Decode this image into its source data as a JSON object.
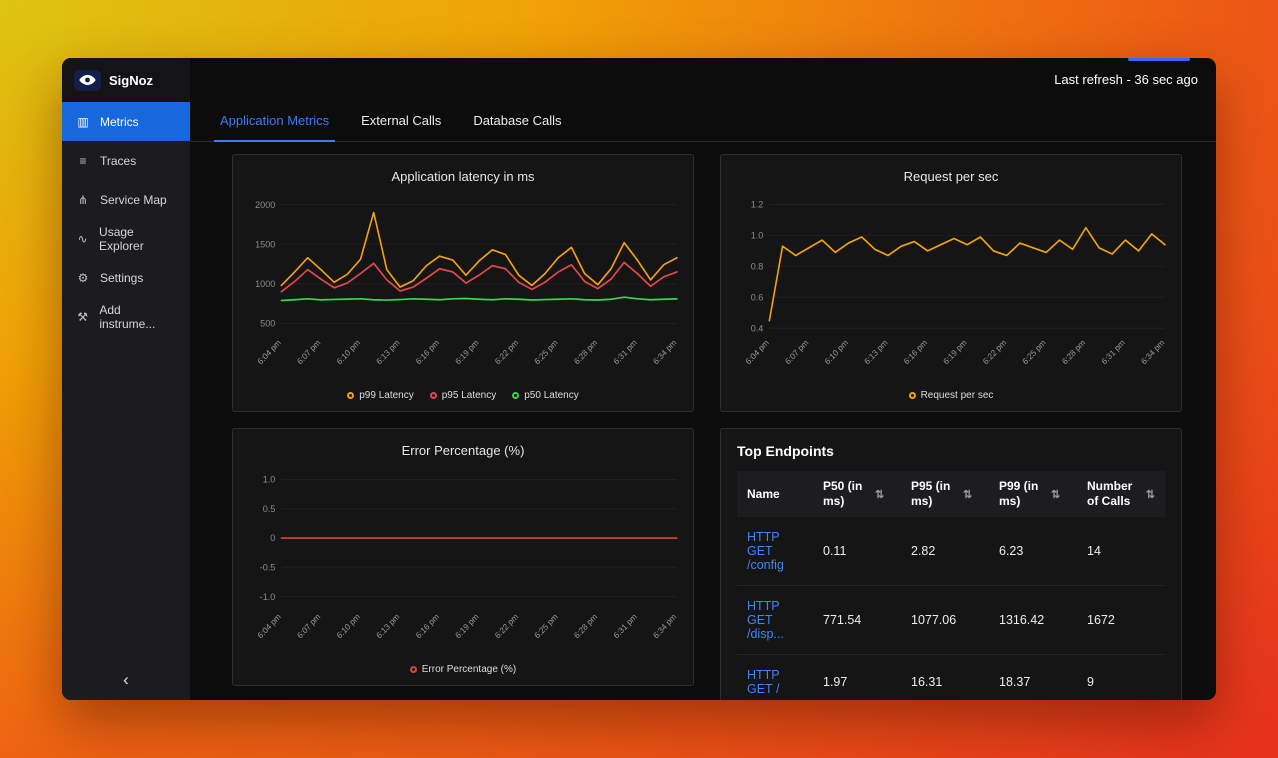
{
  "header": {
    "last_refresh": "Last refresh - 36 sec ago"
  },
  "sidebar": {
    "logo_text": "SigNoz",
    "collapse_glyph": "‹",
    "items": [
      {
        "label": "Metrics",
        "icon": "bar-chart-icon",
        "active": true
      },
      {
        "label": "Traces",
        "icon": "traces-icon",
        "active": false
      },
      {
        "label": "Service Map",
        "icon": "service-map-icon",
        "active": false
      },
      {
        "label": "Usage Explorer",
        "icon": "usage-explorer-icon",
        "active": false
      },
      {
        "label": "Settings",
        "icon": "settings-icon",
        "active": false
      },
      {
        "label": "Add instrume...",
        "icon": "add-instrumentation-icon",
        "active": false
      }
    ]
  },
  "icon_glyphs": {
    "bar-chart-icon": "▥",
    "traces-icon": "≡",
    "service-map-icon": "⋔",
    "usage-explorer-icon": "∿",
    "settings-icon": "⚙",
    "add-instrumentation-icon": "⚒",
    "sort-icon": "⇅"
  },
  "tabs": [
    {
      "label": "Application Metrics",
      "active": true
    },
    {
      "label": "External Calls",
      "active": false
    },
    {
      "label": "Database Calls",
      "active": false
    }
  ],
  "colors": {
    "accent_blue": "#3d7bf5",
    "active_menu_blue": "#1668dc",
    "link_blue": "#4286f5",
    "p99_yellow": "#f2a20c",
    "p95_red": "#e5484d",
    "p50_green": "#3bd549",
    "error_red": "#e0462f"
  },
  "chart_data": [
    {
      "type": "line",
      "title": "Application latency in ms",
      "x_labels": [
        "6:04 pm",
        "6:07 pm",
        "6:10 pm",
        "6:13 pm",
        "6:16 pm",
        "6:19 pm",
        "6:22 pm",
        "6:25 pm",
        "6:28 pm",
        "6:31 pm",
        "6:34 pm"
      ],
      "ylim": [
        400,
        2100
      ],
      "yticks": [
        500,
        1000,
        1500,
        2000
      ],
      "ytick_labels": [
        "500",
        "1000",
        "1500",
        "2000"
      ],
      "series": [
        {
          "name": "p99 Latency",
          "color": "#f2a20c",
          "values": [
            980,
            1150,
            1330,
            1180,
            1020,
            1120,
            1310,
            1900,
            1180,
            960,
            1040,
            1230,
            1350,
            1300,
            1110,
            1290,
            1430,
            1370,
            1110,
            980,
            1130,
            1330,
            1460,
            1130,
            990,
            1190,
            1520,
            1300,
            1050,
            1240,
            1330
          ]
        },
        {
          "name": "p95 Latency",
          "color": "#e5484d",
          "values": [
            900,
            1030,
            1180,
            1060,
            950,
            1010,
            1130,
            1260,
            1050,
            910,
            960,
            1070,
            1190,
            1150,
            1010,
            1110,
            1230,
            1190,
            1020,
            930,
            1020,
            1150,
            1240,
            1030,
            940,
            1060,
            1270,
            1130,
            970,
            1090,
            1150
          ]
        },
        {
          "name": "p50 Latency",
          "color": "#3bd549",
          "values": [
            790,
            800,
            812,
            798,
            803,
            808,
            812,
            800,
            795,
            802,
            812,
            806,
            800,
            812,
            816,
            806,
            800,
            812,
            806,
            796,
            802,
            806,
            812,
            800,
            796,
            806,
            832,
            812,
            800,
            806,
            810
          ]
        }
      ]
    },
    {
      "type": "line",
      "title": "Request per sec",
      "x_labels": [
        "6:04 pm",
        "6:07 pm",
        "6:10 pm",
        "6:13 pm",
        "6:16 pm",
        "6:19 pm",
        "6:22 pm",
        "6:25 pm",
        "6:28 pm",
        "6:31 pm",
        "6:34 pm"
      ],
      "ylim": [
        0.38,
        1.25
      ],
      "yticks": [
        0.4,
        0.6,
        0.8,
        1.0,
        1.2
      ],
      "ytick_labels": [
        "0.4",
        "0.6",
        "0.8",
        "1.0",
        "1.2"
      ],
      "series": [
        {
          "name": "Request per sec",
          "color": "#f2a20c",
          "values": [
            0.45,
            0.93,
            0.87,
            0.92,
            0.97,
            0.89,
            0.95,
            0.99,
            0.91,
            0.87,
            0.93,
            0.96,
            0.9,
            0.94,
            0.98,
            0.94,
            0.99,
            0.9,
            0.87,
            0.95,
            0.92,
            0.89,
            0.97,
            0.91,
            1.05,
            0.92,
            0.88,
            0.97,
            0.9,
            1.01,
            0.94
          ]
        }
      ]
    },
    {
      "type": "line",
      "title": "Error Percentage (%)",
      "x_labels": [
        "6:04 pm",
        "6:07 pm",
        "6:10 pm",
        "6:13 pm",
        "6:16 pm",
        "6:19 pm",
        "6:22 pm",
        "6:25 pm",
        "6:28 pm",
        "6:31 pm",
        "6:34 pm"
      ],
      "ylim": [
        -1.15,
        1.15
      ],
      "yticks": [
        1.0,
        0.5,
        0,
        -0.5,
        -1.0
      ],
      "ytick_labels": [
        "1.0",
        "0.5",
        "0",
        "-0.5",
        "-1.0"
      ],
      "series": [
        {
          "name": "Error Percentage (%)",
          "color": "#e0462f",
          "values": [
            0,
            0,
            0,
            0,
            0,
            0,
            0,
            0,
            0,
            0,
            0,
            0,
            0,
            0,
            0,
            0,
            0,
            0,
            0,
            0,
            0,
            0,
            0,
            0,
            0,
            0,
            0,
            0,
            0,
            0,
            0
          ]
        }
      ]
    }
  ],
  "top_endpoints": {
    "title": "Top Endpoints",
    "columns": [
      {
        "label": "Name",
        "sortable": false
      },
      {
        "label": "P50 (in ms)",
        "sortable": true
      },
      {
        "label": "P95 (in ms)",
        "sortable": true
      },
      {
        "label": "P99 (in ms)",
        "sortable": true
      },
      {
        "label": "Number of Calls",
        "sortable": true
      }
    ],
    "rows": [
      [
        "HTTP GET /config",
        "0.11",
        "2.82",
        "6.23",
        "14"
      ],
      [
        "HTTP GET /disp...",
        "771.54",
        "1077.06",
        "1316.42",
        "1672"
      ],
      [
        "HTTP GET /",
        "1.97",
        "16.31",
        "18.37",
        "9"
      ]
    ]
  }
}
